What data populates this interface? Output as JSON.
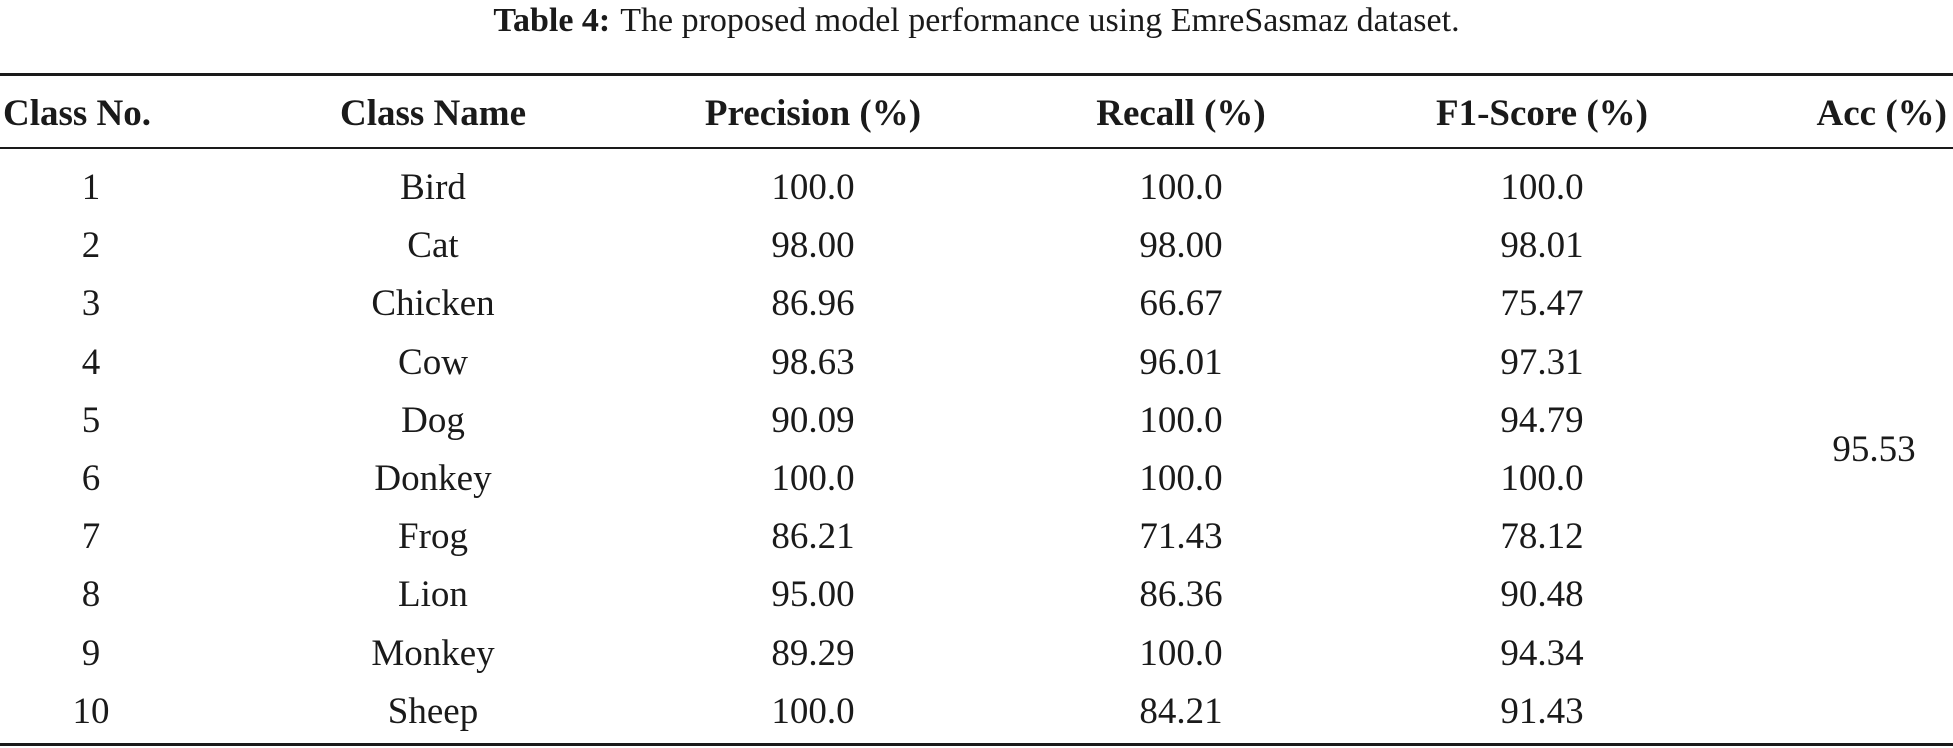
{
  "caption": {
    "label": "Table 4:",
    "text": "The proposed model performance using EmreSasmaz dataset."
  },
  "table": {
    "headers": [
      "Class No.",
      "Class Name",
      "Precision (%)",
      "Recall (%)",
      "F1-Score (%)",
      "Acc (%)"
    ],
    "rows": [
      [
        "1",
        "Bird",
        "100.0",
        "100.0",
        "100.0"
      ],
      [
        "2",
        "Cat",
        "98.00",
        "98.00",
        "98.01"
      ],
      [
        "3",
        "Chicken",
        "86.96",
        "66.67",
        "75.47"
      ],
      [
        "4",
        "Cow",
        "98.63",
        "96.01",
        "97.31"
      ],
      [
        "5",
        "Dog",
        "90.09",
        "100.0",
        "94.79"
      ],
      [
        "6",
        "Donkey",
        "100.0",
        "100.0",
        "100.0"
      ],
      [
        "7",
        "Frog",
        "86.21",
        "71.43",
        "78.12"
      ],
      [
        "8",
        "Lion",
        "95.00",
        "86.36",
        "90.48"
      ],
      [
        "9",
        "Monkey",
        "89.29",
        "100.0",
        "94.34"
      ],
      [
        "10",
        "Sheep",
        "100.0",
        "84.21",
        "91.43"
      ]
    ],
    "acc": "95.53"
  }
}
